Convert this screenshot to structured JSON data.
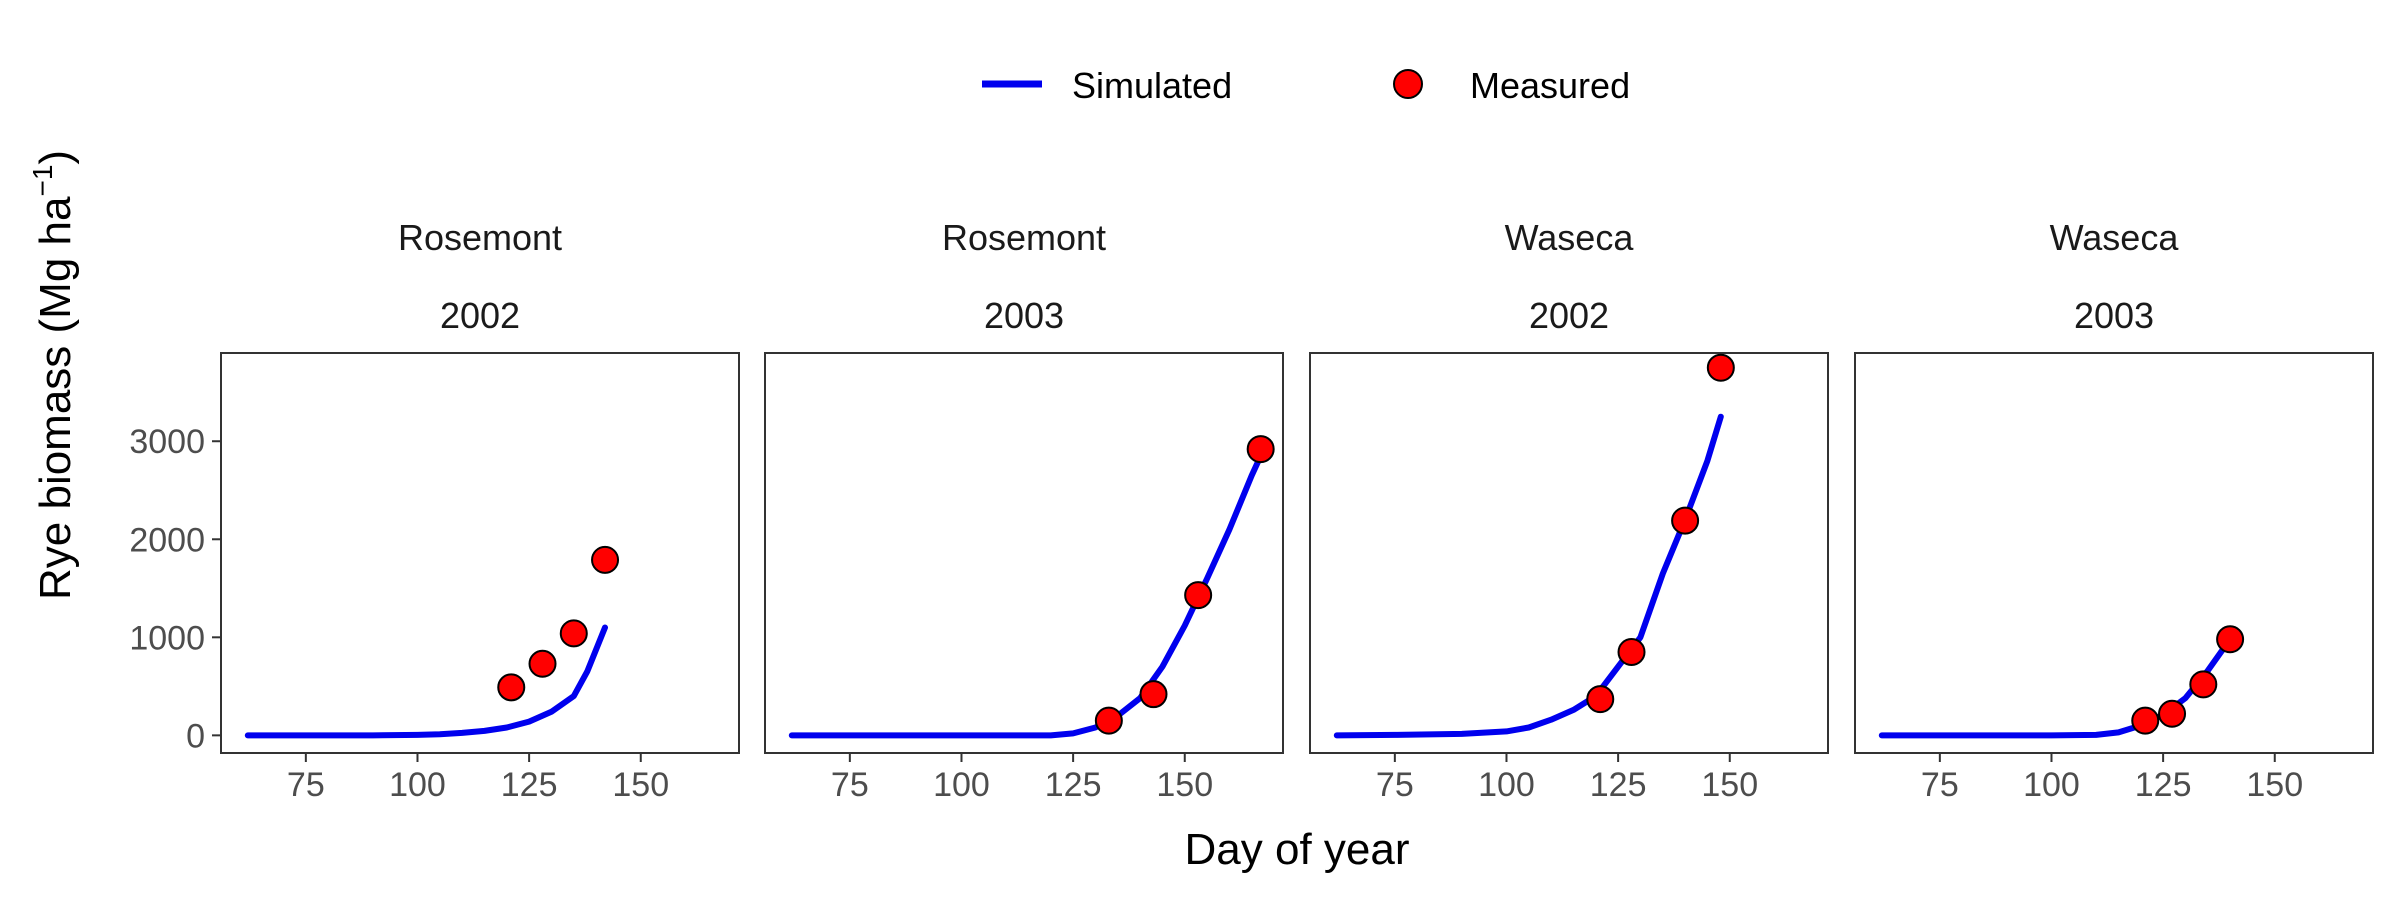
{
  "chart_data": {
    "type": "line",
    "legend": {
      "position": "top",
      "entries": [
        {
          "label": "Simulated",
          "kind": "line",
          "color": "#0000ee"
        },
        {
          "label": "Measured",
          "kind": "point",
          "color": "#ff0000"
        }
      ]
    },
    "xlabel": "Day of year",
    "ylabel": "Rye biomass (Mg ha",
    "ylabel_sup": "−1",
    "ylabel_close": ")",
    "xlim": [
      56,
      172
    ],
    "ylim": [
      -180,
      3900
    ],
    "xticks": [
      75,
      100,
      125,
      150
    ],
    "yticks": [
      0,
      1000,
      2000,
      3000
    ],
    "panels": [
      {
        "site": "Rosemont",
        "year": "2002",
        "simulated": {
          "x": [
            62,
            70,
            80,
            90,
            100,
            105,
            110,
            115,
            120,
            125,
            130,
            135,
            138,
            142
          ],
          "y": [
            0,
            0,
            0,
            0,
            5,
            12,
            25,
            45,
            80,
            140,
            240,
            400,
            650,
            1100
          ]
        },
        "measured": {
          "x": [
            121,
            128,
            135,
            142
          ],
          "y": [
            490,
            730,
            1040,
            1790
          ]
        }
      },
      {
        "site": "Rosemont",
        "year": "2003",
        "simulated": {
          "x": [
            62,
            75,
            90,
            105,
            120,
            125,
            130,
            135,
            140,
            145,
            150,
            155,
            160,
            165,
            167
          ],
          "y": [
            0,
            0,
            0,
            0,
            0,
            20,
            80,
            200,
            380,
            700,
            1120,
            1600,
            2100,
            2650,
            2850
          ]
        },
        "measured": {
          "x": [
            133,
            143,
            153,
            167
          ],
          "y": [
            150,
            420,
            1430,
            2920
          ]
        }
      },
      {
        "site": "Waseca",
        "year": "2002",
        "simulated": {
          "x": [
            62,
            75,
            90,
            100,
            105,
            110,
            115,
            120,
            125,
            130,
            135,
            140,
            145,
            148
          ],
          "y": [
            0,
            5,
            15,
            40,
            80,
            160,
            260,
            400,
            700,
            1000,
            1650,
            2200,
            2800,
            3250
          ]
        },
        "measured": {
          "x": [
            121,
            128,
            140,
            148
          ],
          "y": [
            370,
            850,
            2190,
            3750
          ]
        }
      },
      {
        "site": "Waseca",
        "year": "2003",
        "simulated": {
          "x": [
            62,
            75,
            90,
            100,
            110,
            115,
            120,
            125,
            130,
            135,
            140
          ],
          "y": [
            0,
            0,
            0,
            0,
            5,
            30,
            100,
            210,
            380,
            660,
            980
          ]
        },
        "measured": {
          "x": [
            121,
            127,
            134,
            140
          ],
          "y": [
            150,
            220,
            520,
            980
          ]
        }
      }
    ]
  }
}
